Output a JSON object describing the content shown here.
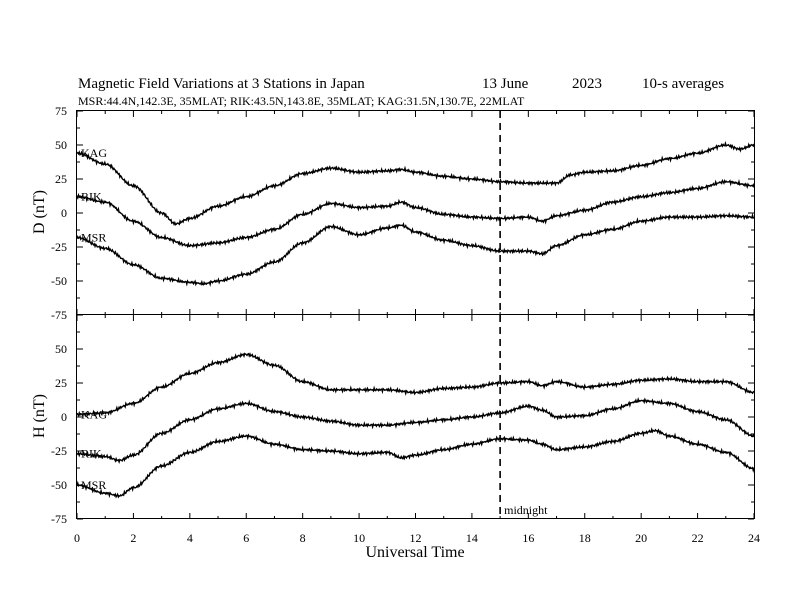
{
  "chart_data": {
    "type": "line",
    "title": "Magnetic Field Variations at 3 Stations in Japan",
    "date": "13 June",
    "year": "2023",
    "averaging": "10-s averages",
    "subtitle": "MSR:44.4N,142.3E, 35MLAT;  RIK:43.5N,143.8E, 35MLAT;  KAG:31.5N,130.7E, 22MLAT",
    "xlabel": "Universal Time",
    "xlim": [
      0,
      24
    ],
    "xticks": [
      0,
      2,
      4,
      6,
      8,
      10,
      12,
      14,
      16,
      18,
      20,
      22,
      24
    ],
    "annotation": {
      "label": "midnight",
      "x": 15
    },
    "panels": [
      {
        "ylabel": "D (nT)",
        "ylim": [
          -75,
          75
        ],
        "yticks": [
          75,
          50,
          25,
          0,
          -25,
          -50,
          -75
        ],
        "series": [
          {
            "name": "KAG",
            "x": [
              0,
              1,
              2,
              3,
              3.5,
              4,
              5,
              6,
              7,
              8,
              9,
              10,
              11,
              11.5,
              12,
              13,
              14,
              15,
              16,
              17,
              17.5,
              18,
              19,
              20,
              21,
              22,
              23,
              23.5,
              24
            ],
            "y": [
              44,
              36,
              20,
              0,
              -8,
              -4,
              5,
              12,
              20,
              29,
              33,
              30,
              31,
              32,
              30,
              27,
              25,
              23,
              22,
              22,
              28,
              30,
              31,
              35,
              40,
              44,
              50,
              47,
              50
            ]
          },
          {
            "name": "RIK",
            "x": [
              0,
              1,
              2,
              3,
              4,
              5,
              6,
              7,
              8,
              9,
              10,
              11,
              11.5,
              12,
              13,
              14,
              15,
              16,
              16.5,
              17,
              18,
              19,
              20,
              21,
              22,
              23,
              24
            ],
            "y": [
              12,
              8,
              -6,
              -18,
              -24,
              -22,
              -18,
              -12,
              -1,
              7,
              4,
              5,
              8,
              4,
              -1,
              -3,
              -4,
              -3,
              -6,
              -2,
              2,
              8,
              12,
              15,
              18,
              23,
              20
            ]
          },
          {
            "name": "MSR",
            "x": [
              0,
              1,
              2,
              3,
              4,
              4.5,
              5,
              6,
              7,
              8,
              9,
              10,
              11,
              11.5,
              12,
              13,
              14,
              15,
              16,
              16.5,
              17,
              18,
              19,
              20,
              21,
              22,
              23,
              24
            ],
            "y": [
              -18,
              -26,
              -38,
              -48,
              -51,
              -52,
              -50,
              -45,
              -36,
              -22,
              -10,
              -16,
              -11,
              -9,
              -14,
              -20,
              -24,
              -28,
              -28,
              -30,
              -24,
              -16,
              -12,
              -6,
              -3,
              -3,
              -2,
              -3
            ]
          }
        ]
      },
      {
        "ylabel": "H (nT)",
        "ylim": [
          -75,
          75
        ],
        "yticks": [
          75,
          50,
          25,
          0,
          -25,
          -50,
          -75
        ],
        "series": [
          {
            "name": "KAG",
            "x": [
              0,
              1,
              2,
              3,
              4,
              5,
              6,
              7,
              8,
              9,
              10,
              11,
              12,
              13,
              14,
              15,
              16,
              16.5,
              17,
              18,
              19,
              20,
              21,
              22,
              23,
              24
            ],
            "y": [
              2,
              3,
              10,
              22,
              32,
              40,
              46,
              38,
              26,
              20,
              20,
              20,
              18,
              21,
              22,
              25,
              26,
              23,
              26,
              22,
              24,
              27,
              28,
              26,
              26,
              18
            ]
          },
          {
            "name": "RIK",
            "x": [
              0,
              1,
              1.5,
              2,
              3,
              4,
              5,
              6,
              7,
              8,
              9,
              10,
              11,
              12,
              13,
              14,
              15,
              16,
              16.5,
              17,
              18,
              19,
              20,
              21,
              22,
              23,
              24
            ],
            "y": [
              -27,
              -29,
              -32,
              -28,
              -12,
              -2,
              6,
              10,
              4,
              0,
              -3,
              -6,
              -6,
              -4,
              -2,
              0,
              3,
              8,
              5,
              0,
              1,
              6,
              12,
              10,
              4,
              -2,
              -14
            ]
          },
          {
            "name": "MSR",
            "x": [
              0,
              1,
              1.5,
              2,
              3,
              4,
              5,
              6,
              7,
              8,
              9,
              10,
              11,
              11.5,
              12,
              13,
              14,
              15,
              16,
              16.5,
              17,
              18,
              19,
              20,
              20.5,
              21,
              22,
              23,
              24
            ],
            "y": [
              -50,
              -56,
              -58,
              -52,
              -36,
              -26,
              -18,
              -14,
              -20,
              -24,
              -25,
              -27,
              -26,
              -30,
              -28,
              -24,
              -20,
              -16,
              -17,
              -20,
              -24,
              -22,
              -18,
              -12,
              -10,
              -14,
              -20,
              -26,
              -38
            ]
          }
        ]
      }
    ]
  }
}
